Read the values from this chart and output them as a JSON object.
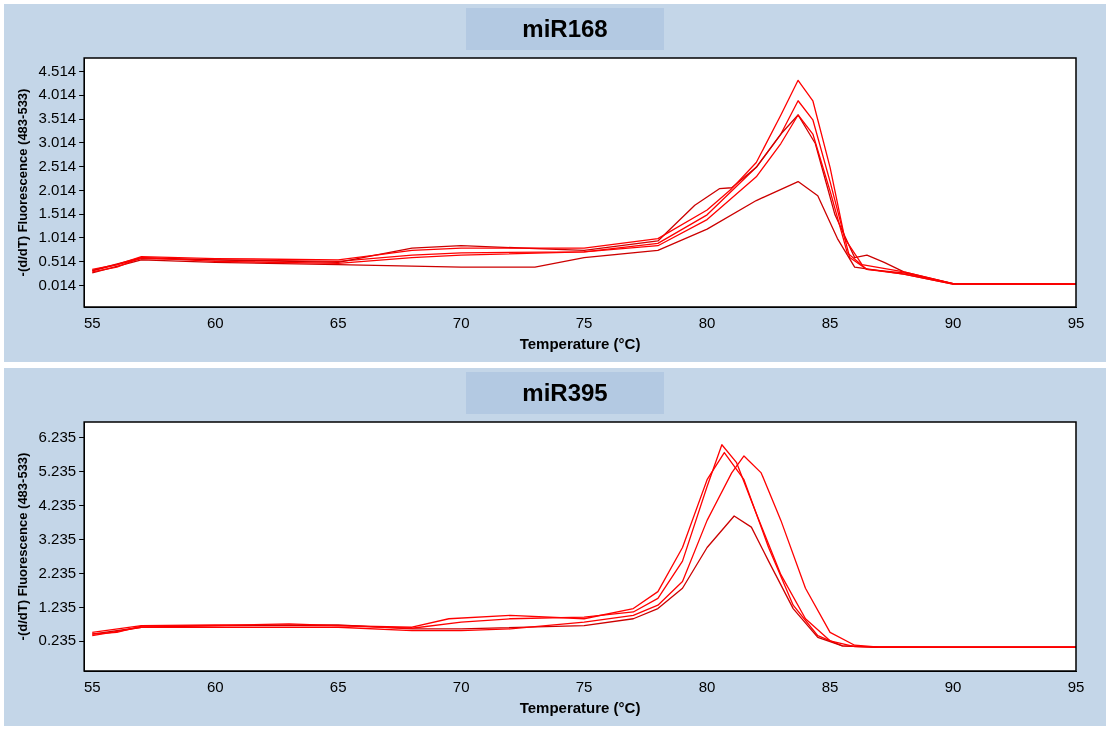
{
  "chart_data": [
    {
      "type": "line",
      "title": "miR168",
      "xlabel": "Temperature (°C)",
      "ylabel": "-(d/dT) Fluorescence (483-533)",
      "xlim": [
        54.67,
        95
      ],
      "xticks": [
        55,
        60,
        65,
        70,
        75,
        80,
        85,
        90,
        95
      ],
      "ylim": [
        -0.44,
        4.8
      ],
      "yticks": [
        0.014,
        0.514,
        1.014,
        1.514,
        2.014,
        2.514,
        3.014,
        3.514,
        4.014,
        4.514
      ],
      "grid": false,
      "marker": "none",
      "line_style": "solid",
      "series": [
        {
          "color": "#ff0000",
          "x": [
            55,
            56,
            57,
            60,
            65,
            68,
            70,
            75,
            78,
            80,
            81,
            82,
            83,
            83.7,
            84.3,
            85,
            85.6,
            86.3,
            88,
            90,
            95
          ],
          "values": [
            0.35,
            0.45,
            0.62,
            0.58,
            0.55,
            0.75,
            0.8,
            0.8,
            1.0,
            1.6,
            2.05,
            2.6,
            3.6,
            4.33,
            3.9,
            2.5,
            1.0,
            0.45,
            0.3,
            0.05,
            0.04
          ]
        },
        {
          "color": "#ff0000",
          "x": [
            55,
            56,
            57,
            60,
            65,
            68,
            70,
            75,
            78,
            80,
            82,
            83,
            83.7,
            84.3,
            85,
            85.7,
            86.5,
            88,
            90,
            95
          ],
          "values": [
            0.3,
            0.4,
            0.6,
            0.52,
            0.48,
            0.6,
            0.65,
            0.72,
            0.85,
            1.4,
            2.3,
            3.0,
            3.6,
            3.2,
            2.0,
            0.7,
            0.35,
            0.25,
            0.04,
            0.04
          ]
        },
        {
          "color": "#cc0000",
          "x": [
            55,
            57,
            60,
            65,
            68,
            70,
            73,
            75,
            78,
            80,
            82,
            83.7,
            84.5,
            85.3,
            86,
            88,
            90,
            95
          ],
          "values": [
            0.28,
            0.55,
            0.5,
            0.45,
            0.42,
            0.4,
            0.4,
            0.6,
            0.75,
            1.2,
            1.8,
            2.2,
            1.9,
            1.0,
            0.4,
            0.25,
            0.04,
            0.04
          ]
        },
        {
          "color": "#cc0000",
          "x": [
            55,
            57,
            60,
            65,
            68,
            70,
            75,
            78,
            79.5,
            80.5,
            81,
            82,
            83,
            83.7,
            84.4,
            85.2,
            86,
            86.5,
            87.2,
            88,
            90,
            95
          ],
          "values": [
            0.33,
            0.6,
            0.55,
            0.5,
            0.8,
            0.85,
            0.75,
            0.95,
            1.7,
            2.05,
            2.07,
            2.5,
            3.2,
            3.6,
            3.0,
            1.5,
            0.6,
            0.65,
            0.5,
            0.3,
            0.05,
            0.04
          ]
        },
        {
          "color": "#ff0000",
          "x": [
            55,
            57,
            60,
            65,
            68,
            70,
            75,
            78,
            80,
            82,
            83,
            83.7,
            84.3,
            85,
            85.8,
            86.5,
            88,
            90,
            95
          ],
          "values": [
            0.32,
            0.58,
            0.55,
            0.52,
            0.65,
            0.7,
            0.72,
            0.9,
            1.5,
            2.5,
            3.2,
            3.9,
            3.5,
            2.2,
            0.6,
            0.35,
            0.28,
            0.05,
            0.04
          ]
        }
      ]
    },
    {
      "type": "line",
      "title": "miR395",
      "xlabel": "Temperature (°C)",
      "ylabel": "-(d/dT) Fluorescence (483-533)",
      "xlim": [
        54.67,
        95
      ],
      "xticks": [
        55,
        60,
        65,
        70,
        75,
        80,
        85,
        90,
        95
      ],
      "ylim": [
        -0.64,
        6.7
      ],
      "yticks": [
        0.235,
        1.235,
        2.235,
        3.235,
        4.235,
        5.235,
        6.235
      ],
      "grid": false,
      "marker": "none",
      "line_style": "solid",
      "series": [
        {
          "color": "#ff0000",
          "x": [
            55,
            56,
            57,
            60,
            63,
            65,
            68,
            70,
            72,
            75,
            77,
            78,
            79,
            80,
            80.6,
            81.2,
            82,
            83,
            84,
            85,
            86,
            90,
            95
          ],
          "values": [
            0.45,
            0.5,
            0.68,
            0.7,
            0.75,
            0.7,
            0.62,
            0.8,
            0.9,
            0.95,
            1.1,
            1.5,
            2.6,
            4.8,
            6.03,
            5.5,
            4.0,
            2.2,
            0.9,
            0.25,
            0.08,
            0.06,
            0.06
          ]
        },
        {
          "color": "#ff0000",
          "x": [
            55,
            57,
            60,
            65,
            68,
            70,
            72,
            75,
            77,
            78,
            79,
            80,
            81,
            81.5,
            82.2,
            83,
            84,
            85,
            86,
            87,
            90,
            95
          ],
          "values": [
            0.4,
            0.65,
            0.65,
            0.65,
            0.55,
            0.55,
            0.6,
            0.8,
            1.0,
            1.3,
            2.0,
            3.8,
            5.2,
            5.7,
            5.2,
            3.8,
            1.8,
            0.5,
            0.12,
            0.06,
            0.06,
            0.06
          ]
        },
        {
          "color": "#cc0000",
          "x": [
            55,
            57,
            60,
            65,
            68,
            70,
            75,
            77,
            78,
            79,
            80,
            81.1,
            81.8,
            82.5,
            83.5,
            84.5,
            85.5,
            87,
            95
          ],
          "values": [
            0.45,
            0.65,
            0.7,
            0.72,
            0.6,
            0.6,
            0.7,
            0.9,
            1.2,
            1.8,
            3.0,
            3.93,
            3.6,
            2.6,
            1.2,
            0.35,
            0.1,
            0.06,
            0.06
          ]
        },
        {
          "color": "#ff0000",
          "x": [
            55,
            57,
            60,
            65,
            68,
            69.5,
            72,
            75,
            77,
            78,
            79,
            80,
            80.7,
            81.5,
            82.5,
            83.5,
            84.5,
            85.5,
            87,
            95
          ],
          "values": [
            0.5,
            0.7,
            0.72,
            0.7,
            0.65,
            0.9,
            1.0,
            0.9,
            1.2,
            1.7,
            3.0,
            5.0,
            5.8,
            5.0,
            3.0,
            1.3,
            0.4,
            0.1,
            0.06,
            0.06
          ]
        }
      ]
    }
  ]
}
